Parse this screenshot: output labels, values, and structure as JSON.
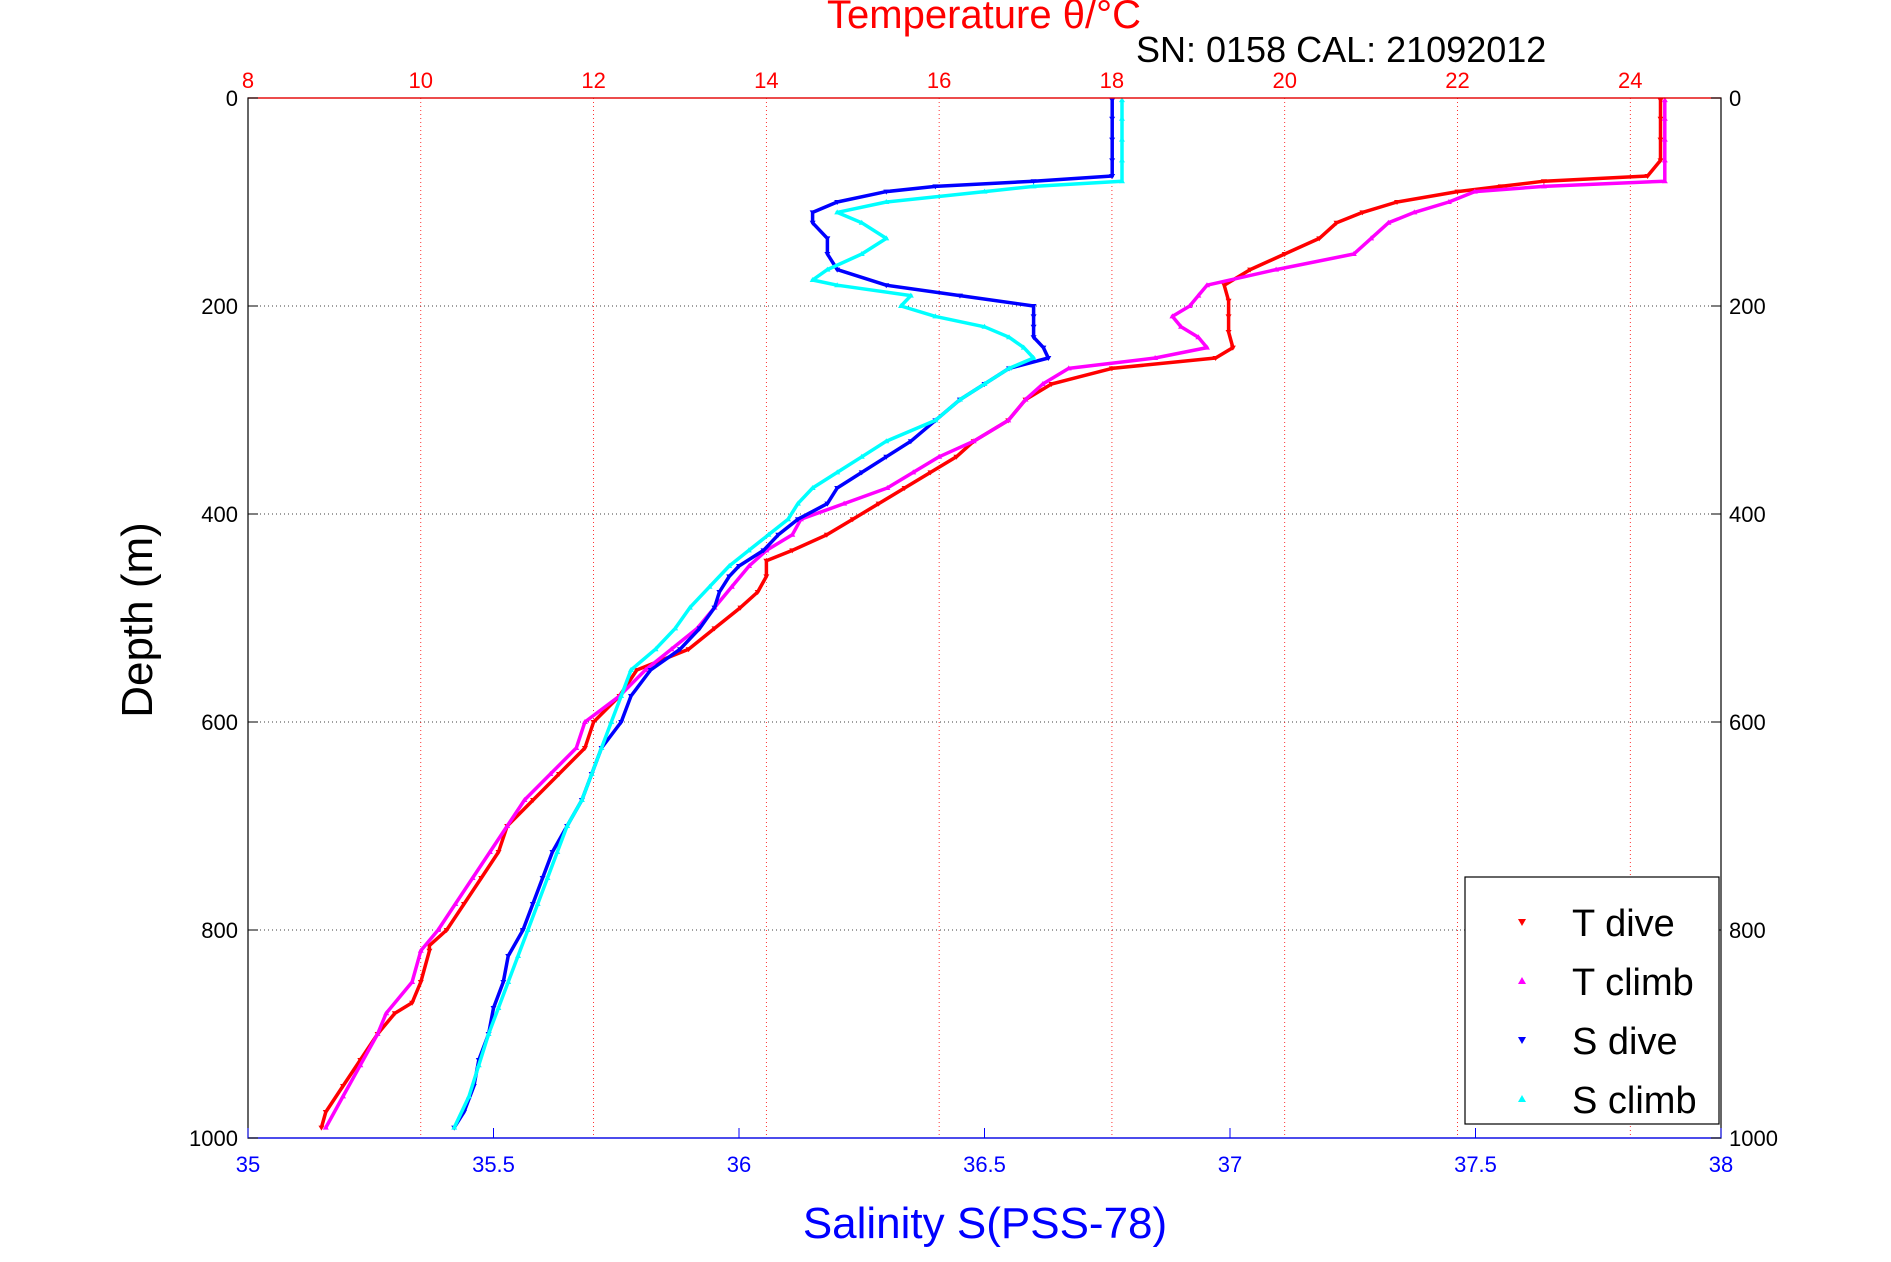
{
  "chart_data": {
    "type": "scatter",
    "title": "Temperature θ/°C",
    "subtitle": "SN: 0158  CAL: 21092012",
    "ylabel": "Depth (m)",
    "xlabel_bottom": "Salinity S(PSS-78)",
    "xlabel_top": "Temperature θ/°C",
    "ylim": [
      0,
      1000
    ],
    "y_reversed": true,
    "y_ticks": [
      "0",
      "200",
      "400",
      "600",
      "800",
      "1000"
    ],
    "salinity_axis": {
      "min": 35,
      "max": 38,
      "ticks": [
        "35",
        "35.5",
        "36",
        "36.5",
        "37",
        "37.5",
        "38"
      ],
      "color": "#0000ff"
    },
    "temperature_axis": {
      "min": 8,
      "max": 25.05,
      "ticks": [
        "8",
        "10",
        "12",
        "14",
        "16",
        "18",
        "20",
        "22",
        "24"
      ],
      "color": "#ff0000"
    },
    "grid": true,
    "legend_position": "bottom-right",
    "series": [
      {
        "name": "T dive",
        "axis": "temperature",
        "color": "#ff0000",
        "marker": "triangle-down",
        "depth": [
          2,
          20,
          40,
          60,
          75,
          80,
          85,
          90,
          100,
          110,
          120,
          135,
          150,
          165,
          180,
          195,
          210,
          225,
          240,
          250,
          260,
          275,
          290,
          310,
          330,
          345,
          360,
          375,
          390,
          405,
          420,
          435,
          445,
          460,
          475,
          490,
          510,
          530,
          550,
          575,
          600,
          625,
          650,
          675,
          700,
          725,
          750,
          775,
          800,
          815,
          820,
          850,
          870,
          880,
          900,
          925,
          950,
          975,
          990
        ],
        "values": [
          24.35,
          24.35,
          24.35,
          24.35,
          24.2,
          23.0,
          22.5,
          22.0,
          21.3,
          20.9,
          20.6,
          20.4,
          20.0,
          19.6,
          19.3,
          19.35,
          19.35,
          19.35,
          19.4,
          19.2,
          18.0,
          17.3,
          17.0,
          16.8,
          16.4,
          16.2,
          15.9,
          15.6,
          15.3,
          15.0,
          14.7,
          14.3,
          14.0,
          14.0,
          13.9,
          13.7,
          13.4,
          13.1,
          12.5,
          12.3,
          12.0,
          11.9,
          11.6,
          11.3,
          11.0,
          10.9,
          10.7,
          10.5,
          10.3,
          10.1,
          10.1,
          10.0,
          9.9,
          9.7,
          9.5,
          9.3,
          9.1,
          8.9,
          8.85
        ]
      },
      {
        "name": "T climb",
        "axis": "temperature",
        "color": "#ff00ff",
        "marker": "triangle-up",
        "depth": [
          2,
          20,
          40,
          60,
          80,
          85,
          90,
          100,
          110,
          120,
          135,
          150,
          165,
          180,
          190,
          200,
          210,
          220,
          230,
          240,
          250,
          260,
          275,
          290,
          310,
          330,
          345,
          360,
          375,
          390,
          405,
          420,
          435,
          450,
          470,
          490,
          510,
          530,
          550,
          575,
          600,
          625,
          650,
          675,
          700,
          725,
          750,
          775,
          800,
          820,
          850,
          880,
          900,
          930,
          960,
          990
        ],
        "values": [
          24.4,
          24.4,
          24.4,
          24.4,
          24.4,
          23.0,
          22.2,
          21.9,
          21.5,
          21.2,
          21.0,
          20.8,
          19.9,
          19.1,
          19.0,
          18.9,
          18.7,
          18.8,
          19.0,
          19.1,
          18.5,
          17.5,
          17.2,
          17.0,
          16.8,
          16.4,
          16.0,
          15.7,
          15.4,
          14.9,
          14.4,
          14.3,
          14.0,
          13.8,
          13.6,
          13.4,
          13.2,
          12.9,
          12.6,
          12.3,
          11.9,
          11.8,
          11.5,
          11.2,
          11.0,
          10.8,
          10.6,
          10.4,
          10.2,
          10.0,
          9.9,
          9.6,
          9.5,
          9.3,
          9.1,
          8.9
        ]
      },
      {
        "name": "S dive",
        "axis": "salinity",
        "color": "#0000ff",
        "marker": "triangle-down",
        "depth": [
          2,
          20,
          40,
          60,
          75,
          80,
          85,
          90,
          100,
          110,
          120,
          135,
          150,
          165,
          180,
          190,
          200,
          210,
          220,
          230,
          240,
          250,
          260,
          275,
          290,
          310,
          330,
          345,
          360,
          375,
          390,
          405,
          420,
          435,
          450,
          460,
          475,
          490,
          510,
          530,
          550,
          575,
          600,
          625,
          650,
          675,
          700,
          725,
          750,
          775,
          800,
          825,
          850,
          875,
          900,
          925,
          950,
          975,
          990
        ],
        "values": [
          36.76,
          36.76,
          36.76,
          36.76,
          36.76,
          36.6,
          36.4,
          36.3,
          36.2,
          36.15,
          36.15,
          36.18,
          36.18,
          36.2,
          36.3,
          36.45,
          36.6,
          36.6,
          36.6,
          36.6,
          36.62,
          36.63,
          36.55,
          36.5,
          36.45,
          36.4,
          36.35,
          36.3,
          36.25,
          36.2,
          36.18,
          36.12,
          36.08,
          36.05,
          36.0,
          35.98,
          35.96,
          35.95,
          35.92,
          35.88,
          35.82,
          35.78,
          35.76,
          35.72,
          35.7,
          35.68,
          35.65,
          35.62,
          35.6,
          35.58,
          35.56,
          35.53,
          35.52,
          35.5,
          35.49,
          35.47,
          35.46,
          35.44,
          35.42
        ]
      },
      {
        "name": "S climb",
        "axis": "salinity",
        "color": "#00ffff",
        "marker": "triangle-up",
        "depth": [
          2,
          20,
          40,
          60,
          80,
          85,
          90,
          100,
          110,
          120,
          135,
          150,
          165,
          175,
          180,
          190,
          200,
          210,
          220,
          230,
          240,
          250,
          260,
          275,
          290,
          310,
          330,
          345,
          360,
          375,
          390,
          405,
          420,
          435,
          450,
          470,
          490,
          510,
          530,
          550,
          575,
          600,
          625,
          650,
          675,
          700,
          725,
          750,
          775,
          800,
          825,
          850,
          875,
          900,
          930,
          960,
          990
        ],
        "values": [
          36.78,
          36.78,
          36.78,
          36.78,
          36.78,
          36.6,
          36.5,
          36.3,
          36.2,
          36.25,
          36.3,
          36.25,
          36.18,
          36.15,
          36.2,
          36.35,
          36.33,
          36.4,
          36.5,
          36.55,
          36.58,
          36.6,
          36.55,
          36.5,
          36.45,
          36.4,
          36.3,
          36.25,
          36.2,
          36.15,
          36.12,
          36.1,
          36.06,
          36.02,
          35.98,
          35.94,
          35.9,
          35.87,
          35.83,
          35.78,
          35.76,
          35.74,
          35.72,
          35.7,
          35.68,
          35.65,
          35.63,
          35.61,
          35.59,
          35.57,
          35.55,
          35.53,
          35.51,
          35.49,
          35.47,
          35.45,
          35.42
        ]
      }
    ]
  },
  "legend": {
    "items": [
      {
        "label": "T dive",
        "color": "#ff0000",
        "marker": "triangle-down"
      },
      {
        "label": "T climb",
        "color": "#ff00ff",
        "marker": "triangle-up"
      },
      {
        "label": "S dive",
        "color": "#0000ff",
        "marker": "triangle-down"
      },
      {
        "label": "S climb",
        "color": "#00ffff",
        "marker": "triangle-up"
      }
    ]
  }
}
